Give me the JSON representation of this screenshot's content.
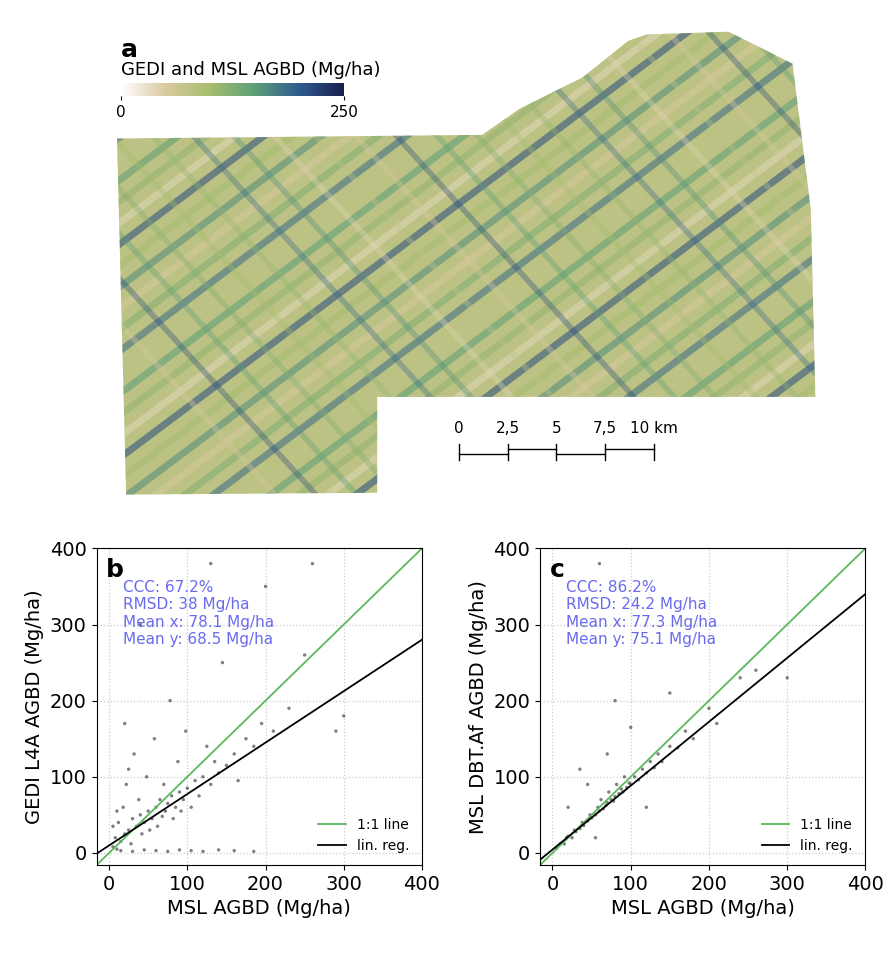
{
  "chart_data": [
    {
      "type": "map",
      "title": "a",
      "colorbar": {
        "label": "GEDI and MSL AGBD (Mg/ha)",
        "range": [
          0,
          250
        ],
        "ticks": [
          0,
          250
        ]
      },
      "scale_ticks": [
        0,
        {
          "value": 2.5,
          "label": "2,5"
        },
        5,
        {
          "value": 7.5,
          "label": "7,5"
        },
        {
          "value": 10,
          "label": "10 km"
        }
      ]
    },
    {
      "type": "scatter",
      "title": "b",
      "xlabel": "MSL AGBD (Mg/ha)",
      "ylabel": "GEDI L4A AGBD (Mg/ha)",
      "xlim": [
        -16,
        400
      ],
      "ylim": [
        -16,
        400
      ],
      "xticks": [
        0,
        100,
        200,
        300,
        400
      ],
      "yticks": [
        0,
        100,
        200,
        300,
        400
      ],
      "grid": true,
      "legend": "lower right",
      "annotations": [
        "CCC: 67.2%",
        "RMSD: 38 Mg/ha",
        "Mean x: 78.1 Mg/ha",
        "Mean y: 68.5 Mg/ha"
      ],
      "series": [
        {
          "type": "scatter",
          "color": "#000000",
          "x": [
            5,
            8,
            10,
            12,
            15,
            18,
            20,
            22,
            25,
            28,
            30,
            32,
            35,
            38,
            40,
            42,
            45,
            48,
            50,
            52,
            55,
            58,
            60,
            62,
            65,
            68,
            70,
            72,
            75,
            78,
            80,
            82,
            85,
            88,
            90,
            92,
            95,
            98,
            100,
            105,
            110,
            115,
            120,
            125,
            130,
            135,
            140,
            145,
            150,
            160,
            165,
            175,
            185,
            195,
            210,
            230,
            250,
            290,
            300,
            40,
            130,
            200,
            260,
            15,
            30,
            45,
            60,
            75,
            90,
            105,
            120,
            140,
            160,
            185,
            10,
            5,
            20,
            25
          ],
          "y": [
            8,
            20,
            5,
            40,
            15,
            60,
            25,
            90,
            30,
            12,
            45,
            130,
            35,
            70,
            50,
            25,
            40,
            100,
            55,
            30,
            45,
            150,
            60,
            35,
            70,
            48,
            90,
            55,
            65,
            200,
            75,
            45,
            60,
            120,
            80,
            55,
            70,
            160,
            85,
            60,
            95,
            75,
            100,
            140,
            90,
            120,
            105,
            250,
            115,
            130,
            95,
            150,
            140,
            170,
            160,
            190,
            260,
            160,
            180,
            300,
            380,
            350,
            380,
            3,
            2,
            4,
            3,
            2,
            4,
            3,
            2,
            4,
            3,
            2,
            55,
            35,
            170,
            110
          ]
        },
        {
          "name": "1:1 line",
          "type": "line",
          "color": "#5cb85c",
          "x": [
            -16,
            400
          ],
          "y": [
            -16,
            400
          ]
        },
        {
          "name": "lin. reg.",
          "type": "line",
          "color": "#000000",
          "x": [
            -16,
            400
          ],
          "y": [
            -1,
            280
          ]
        }
      ]
    },
    {
      "type": "scatter",
      "title": "c",
      "xlabel": "MSL AGBD (Mg/ha)",
      "ylabel": "MSL DBT.Af AGBD (Mg/ha)",
      "xlim": [
        -16,
        400
      ],
      "ylim": [
        -16,
        400
      ],
      "xticks": [
        0,
        100,
        200,
        300,
        400
      ],
      "yticks": [
        0,
        100,
        200,
        300,
        400
      ],
      "grid": true,
      "legend": "lower right",
      "annotations": [
        "CCC: 86.2%",
        "RMSD: 24.2 Mg/ha",
        "Mean x: 77.3 Mg/ha",
        "Mean y: 75.1 Mg/ha"
      ],
      "series": [
        {
          "type": "scatter",
          "color": "#000000",
          "x": [
            5,
            10,
            15,
            18,
            20,
            25,
            28,
            30,
            35,
            38,
            40,
            45,
            48,
            50,
            55,
            58,
            60,
            62,
            65,
            68,
            70,
            72,
            75,
            78,
            80,
            82,
            85,
            88,
            90,
            92,
            95,
            98,
            100,
            105,
            110,
            115,
            120,
            125,
            130,
            135,
            140,
            150,
            160,
            170,
            180,
            200,
            210,
            240,
            260,
            300,
            45,
            70,
            100,
            55,
            120,
            20,
            150,
            60,
            80,
            35
          ],
          "y": [
            6,
            12,
            12,
            20,
            22,
            20,
            30,
            28,
            32,
            40,
            36,
            42,
            50,
            46,
            50,
            60,
            55,
            70,
            58,
            62,
            66,
            80,
            70,
            68,
            74,
            90,
            78,
            84,
            80,
            100,
            86,
            92,
            90,
            100,
            96,
            110,
            105,
            120,
            112,
            130,
            120,
            140,
            138,
            160,
            150,
            190,
            170,
            230,
            240,
            230,
            90,
            130,
            165,
            20,
            60,
            60,
            210,
            380,
            200,
            110
          ]
        },
        {
          "name": "1:1 line",
          "type": "line",
          "color": "#5cb85c",
          "x": [
            -16,
            400
          ],
          "y": [
            -16,
            400
          ]
        },
        {
          "name": "lin. reg.",
          "type": "line",
          "color": "#000000",
          "x": [
            -16,
            400
          ],
          "y": [
            -9,
            340
          ]
        }
      ]
    }
  ]
}
